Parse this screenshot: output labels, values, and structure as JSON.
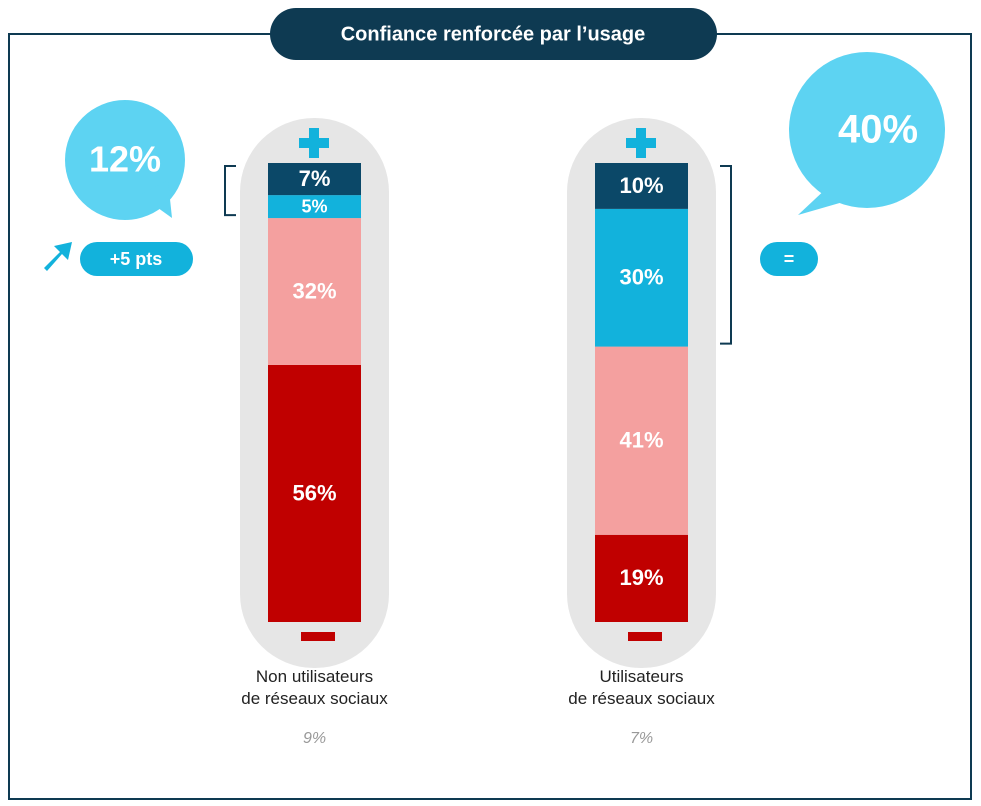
{
  "chart_data": {
    "type": "stacked_bar",
    "title": "Confiance renforcée par l’usage",
    "categories": [
      "Non utilisateurs\nde réseaux sociaux",
      "Utilisateurs\nde réseaux sociaux"
    ],
    "base_notes": [
      "9%",
      "7%"
    ],
    "series": [
      {
        "color": "#0b4868",
        "values": [
          7,
          10
        ],
        "value_labels": [
          "7%",
          "10%"
        ]
      },
      {
        "color": "#12b2dc",
        "values": [
          5,
          30
        ],
        "value_labels": [
          "5%",
          "30%"
        ]
      },
      {
        "color": "#f4a09f",
        "values": [
          32,
          41
        ],
        "value_labels": [
          "32%",
          "41%"
        ]
      },
      {
        "color": "#c00000",
        "values": [
          56,
          19
        ],
        "value_labels": [
          "56%",
          "19%"
        ]
      }
    ],
    "ylim": [
      0,
      100
    ],
    "annotations": {
      "left_total": "12%",
      "left_change": "+5 pts",
      "right_total": "40%",
      "right_change": "="
    }
  }
}
